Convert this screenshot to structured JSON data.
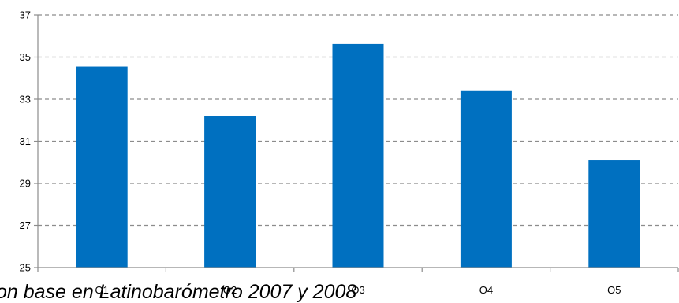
{
  "chart_data": {
    "type": "bar",
    "title": "",
    "xlabel": "",
    "ylabel": "",
    "categories": [
      "Q1",
      "Q2",
      "Q3",
      "Q4",
      "Q5"
    ],
    "values": [
      34.55,
      32.18,
      35.62,
      33.42,
      30.12
    ],
    "ylim": [
      25,
      37
    ],
    "yticks": [
      "25",
      "27",
      "29",
      "31",
      "33",
      "35",
      "37"
    ],
    "grid": true,
    "legend": "none",
    "bar_color": "#0070c0"
  },
  "source_note": "on base en Latinobarómetro 2007 y 2008"
}
